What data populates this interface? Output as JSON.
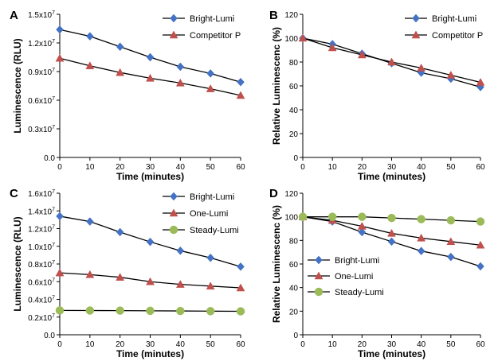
{
  "figure": {
    "background": "#ffffff"
  },
  "chart_data": [
    {
      "panel": "A",
      "type": "line",
      "xlabel": "Time (minutes)",
      "ylabel": "Luminescence (RLU)",
      "xlim": [
        0,
        60
      ],
      "ylim": [
        0,
        15000000
      ],
      "x_ticks": [
        0,
        10,
        20,
        30,
        40,
        50,
        60
      ],
      "x_tick_labels": [
        "0",
        "10",
        "20",
        "30",
        "40",
        "50",
        "60"
      ],
      "y_ticks": [
        0,
        3000000,
        6000000,
        9000000,
        12000000,
        15000000
      ],
      "y_tick_labels": [
        [
          "0.0",
          ""
        ],
        [
          "0.3x10",
          "7"
        ],
        [
          "0.6x10",
          "7"
        ],
        [
          "0.9x10",
          "7"
        ],
        [
          "1.2x10",
          "7"
        ],
        [
          "1.5x10",
          "7"
        ]
      ],
      "grid": false,
      "legend_position": "top-right",
      "x": [
        0,
        10,
        20,
        30,
        40,
        50,
        60
      ],
      "series": [
        {
          "name": "Bright-Lumi",
          "color": "#4472C4",
          "marker": "diamond",
          "values": [
            13400000,
            12700000,
            11600000,
            10500000,
            9500000,
            8800000,
            7900000
          ]
        },
        {
          "name": "Competitor P",
          "color": "#C0504D",
          "marker": "triangle",
          "values": [
            10400000,
            9600000,
            8900000,
            8300000,
            7800000,
            7200000,
            6500000
          ]
        }
      ]
    },
    {
      "panel": "B",
      "type": "line",
      "xlabel": "Time (minutes)",
      "ylabel": "Relative Luminescenc (%)",
      "xlim": [
        0,
        60
      ],
      "ylim": [
        0,
        120
      ],
      "x_ticks": [
        0,
        10,
        20,
        30,
        40,
        50,
        60
      ],
      "x_tick_labels": [
        "0",
        "10",
        "20",
        "30",
        "40",
        "50",
        "60"
      ],
      "y_ticks": [
        0,
        20,
        40,
        60,
        80,
        100,
        120
      ],
      "y_tick_labels": [
        [
          "0",
          ""
        ],
        [
          "20",
          ""
        ],
        [
          "40",
          ""
        ],
        [
          "60",
          ""
        ],
        [
          "80",
          ""
        ],
        [
          "100",
          ""
        ],
        [
          "120",
          ""
        ]
      ],
      "grid": false,
      "legend_position": "top-right",
      "x": [
        0,
        10,
        20,
        30,
        40,
        50,
        60
      ],
      "series": [
        {
          "name": "Bright-Lumi",
          "color": "#4472C4",
          "marker": "diamond",
          "values": [
            100,
            95,
            87,
            79,
            71,
            66,
            59
          ]
        },
        {
          "name": "Competitor P",
          "color": "#C0504D",
          "marker": "triangle",
          "values": [
            100,
            92,
            86,
            80,
            75,
            69,
            63
          ]
        }
      ]
    },
    {
      "panel": "C",
      "type": "line",
      "xlabel": "Time (minutes)",
      "ylabel": "Luminescence (RLU)",
      "xlim": [
        0,
        60
      ],
      "ylim": [
        0,
        16000000
      ],
      "x_ticks": [
        0,
        10,
        20,
        30,
        40,
        50,
        60
      ],
      "x_tick_labels": [
        "0",
        "10",
        "20",
        "30",
        "40",
        "50",
        "60"
      ],
      "y_ticks": [
        0,
        2000000,
        4000000,
        6000000,
        8000000,
        10000000,
        12000000,
        14000000,
        16000000
      ],
      "y_tick_labels": [
        [
          "0.0",
          ""
        ],
        [
          "0.2x10",
          "7"
        ],
        [
          "0.4x10",
          "7"
        ],
        [
          "0.6x10",
          "7"
        ],
        [
          "0.8x10",
          "7"
        ],
        [
          "1.0x10",
          "7"
        ],
        [
          "1.2x10",
          "7"
        ],
        [
          "1.4x10",
          "7"
        ],
        [
          "1.6x10",
          "7"
        ]
      ],
      "grid": false,
      "legend_position": "top-right",
      "x": [
        0,
        10,
        20,
        30,
        40,
        50,
        60
      ],
      "series": [
        {
          "name": "Bright-Lumi",
          "color": "#4472C4",
          "marker": "diamond",
          "values": [
            13400000,
            12800000,
            11600000,
            10500000,
            9500000,
            8700000,
            7700000
          ]
        },
        {
          "name": "One-Lumi",
          "color": "#C0504D",
          "marker": "triangle",
          "values": [
            7000000,
            6800000,
            6500000,
            6000000,
            5700000,
            5500000,
            5300000
          ]
        },
        {
          "name": "Steady-Lumi",
          "color": "#9BBB59",
          "marker": "circle",
          "values": [
            2750000,
            2740000,
            2730000,
            2710000,
            2690000,
            2670000,
            2650000
          ]
        }
      ]
    },
    {
      "panel": "D",
      "type": "line",
      "xlabel": "Time (minutes)",
      "ylabel": "Relative Luminescenc (%)",
      "xlim": [
        0,
        60
      ],
      "ylim": [
        0,
        120
      ],
      "x_ticks": [
        0,
        10,
        20,
        30,
        40,
        50,
        60
      ],
      "x_tick_labels": [
        "0",
        "10",
        "20",
        "30",
        "40",
        "50",
        "60"
      ],
      "y_ticks": [
        0,
        20,
        40,
        60,
        80,
        100,
        120
      ],
      "y_tick_labels": [
        [
          "0",
          ""
        ],
        [
          "20",
          ""
        ],
        [
          "40",
          ""
        ],
        [
          "60",
          ""
        ],
        [
          "80",
          ""
        ],
        [
          "100",
          ""
        ],
        [
          "120",
          ""
        ]
      ],
      "grid": false,
      "legend_position": "center-left",
      "x": [
        0,
        10,
        20,
        30,
        40,
        50,
        60
      ],
      "series": [
        {
          "name": "Bright-Lumi",
          "color": "#4472C4",
          "marker": "diamond",
          "values": [
            100,
            96,
            87,
            79,
            71,
            66,
            58
          ]
        },
        {
          "name": "One-Lumi",
          "color": "#C0504D",
          "marker": "triangle",
          "values": [
            100,
            97,
            92,
            86,
            82,
            79,
            76
          ]
        },
        {
          "name": "Steady-Lumi",
          "color": "#9BBB59",
          "marker": "circle",
          "values": [
            100,
            100,
            100,
            99,
            98,
            97,
            96
          ]
        }
      ]
    }
  ]
}
